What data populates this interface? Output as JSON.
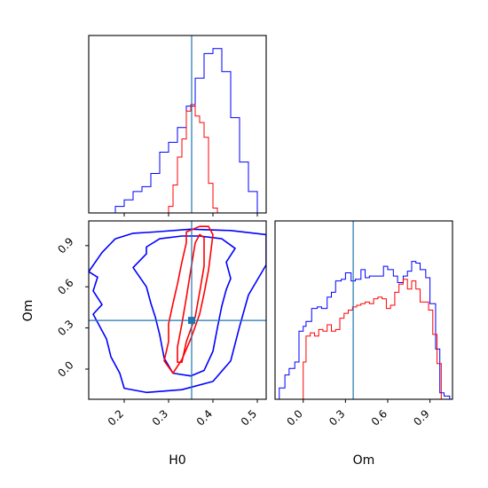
{
  "colors": {
    "blue": "#0000ff",
    "red": "#ff0000",
    "truth": "#1f77b4",
    "truth_marker": "#1f77b4",
    "frame": "#000000"
  },
  "chart_data": {
    "type": "corner",
    "parameters": [
      "H0",
      "Om"
    ],
    "truth": {
      "H0": 0.352,
      "Om": 0.355
    },
    "panels": [
      {
        "id": "h0-marginal",
        "type": "histogram-step",
        "x_parameter": "H0",
        "xlim": [
          0.12,
          0.52
        ],
        "ylim": [
          0,
          1.08
        ],
        "x_ticks": [
          0.2,
          0.3,
          0.4,
          0.5
        ],
        "x_tick_labels_shown": false,
        "y_ticks_shown": false,
        "series": [
          {
            "color": "#0000ff",
            "bin_edges": [
              0.18,
              0.2,
              0.22,
              0.24,
              0.26,
              0.28,
              0.3,
              0.32,
              0.34,
              0.36,
              0.38,
              0.4,
              0.42,
              0.44,
              0.46,
              0.48,
              0.5
            ],
            "values": [
              0.04,
              0.08,
              0.13,
              0.16,
              0.24,
              0.37,
              0.43,
              0.52,
              0.65,
              0.82,
              0.97,
              1.0,
              0.86,
              0.58,
              0.31,
              0.13
            ]
          },
          {
            "color": "#ff0000",
            "bin_edges": [
              0.3,
              0.31,
              0.32,
              0.33,
              0.34,
              0.35,
              0.36,
              0.37,
              0.38,
              0.39,
              0.4,
              0.41
            ],
            "values": [
              0.04,
              0.17,
              0.34,
              0.45,
              0.62,
              0.66,
              0.59,
              0.55,
              0.46,
              0.18,
              0.03
            ]
          }
        ]
      },
      {
        "id": "h0-om-contours",
        "type": "contour",
        "x_parameter": "H0",
        "y_parameter": "Om",
        "xlim": [
          0.12,
          0.52
        ],
        "ylim": [
          -0.22,
          1.08
        ],
        "x_ticks": [
          0.2,
          0.3,
          0.4,
          0.5
        ],
        "x_tick_labels": [
          "0.2",
          "0.3",
          "0.4",
          "0.5"
        ],
        "y_ticks": [
          0.0,
          0.3,
          0.6,
          0.9
        ],
        "y_tick_labels": [
          "0.0",
          "0.3",
          "0.6",
          "0.9"
        ],
        "xlabel": "H0",
        "ylabel": "Om",
        "contours": [
          {
            "color": "#0000ff",
            "level": "outer",
            "points": [
              [
                0.27,
                1.0
              ],
              [
                0.35,
                1.02
              ],
              [
                0.44,
                1.01
              ],
              [
                0.52,
                0.98
              ],
              [
                0.52,
                0.76
              ],
              [
                0.48,
                0.54
              ],
              [
                0.46,
                0.31
              ],
              [
                0.44,
                0.06
              ],
              [
                0.4,
                -0.09
              ],
              [
                0.33,
                -0.15
              ],
              [
                0.25,
                -0.17
              ],
              [
                0.2,
                -0.14
              ],
              [
                0.19,
                -0.03
              ],
              [
                0.17,
                0.09
              ],
              [
                0.16,
                0.22
              ],
              [
                0.13,
                0.4
              ],
              [
                0.15,
                0.47
              ],
              [
                0.13,
                0.57
              ],
              [
                0.14,
                0.67
              ],
              [
                0.12,
                0.71
              ],
              [
                0.15,
                0.85
              ],
              [
                0.18,
                0.95
              ],
              [
                0.22,
                0.99
              ],
              [
                0.27,
                1.0
              ]
            ]
          },
          {
            "color": "#0000ff",
            "level": "inner",
            "points": [
              [
                0.37,
                0.97
              ],
              [
                0.42,
                0.95
              ],
              [
                0.45,
                0.88
              ],
              [
                0.43,
                0.78
              ],
              [
                0.44,
                0.66
              ],
              [
                0.43,
                0.58
              ],
              [
                0.42,
                0.46
              ],
              [
                0.41,
                0.3
              ],
              [
                0.4,
                0.13
              ],
              [
                0.38,
                -0.01
              ],
              [
                0.35,
                -0.05
              ],
              [
                0.31,
                -0.03
              ],
              [
                0.29,
                0.08
              ],
              [
                0.28,
                0.25
              ],
              [
                0.27,
                0.38
              ],
              [
                0.26,
                0.48
              ],
              [
                0.25,
                0.6
              ],
              [
                0.22,
                0.74
              ],
              [
                0.25,
                0.84
              ],
              [
                0.25,
                0.89
              ],
              [
                0.28,
                0.95
              ],
              [
                0.33,
                0.97
              ],
              [
                0.37,
                0.97
              ]
            ]
          },
          {
            "color": "#ff0000",
            "level": "outer",
            "points": [
              [
                0.34,
                1.0
              ],
              [
                0.37,
                1.04
              ],
              [
                0.39,
                1.04
              ],
              [
                0.4,
                0.98
              ],
              [
                0.39,
                0.72
              ],
              [
                0.38,
                0.55
              ],
              [
                0.37,
                0.4
              ],
              [
                0.35,
                0.22
              ],
              [
                0.33,
                0.07
              ],
              [
                0.31,
                -0.03
              ],
              [
                0.29,
                0.06
              ],
              [
                0.3,
                0.2
              ],
              [
                0.3,
                0.33
              ],
              [
                0.31,
                0.48
              ],
              [
                0.32,
                0.62
              ],
              [
                0.33,
                0.78
              ],
              [
                0.34,
                0.92
              ],
              [
                0.34,
                1.0
              ]
            ]
          },
          {
            "color": "#ff0000",
            "level": "inner",
            "points": [
              [
                0.36,
                0.92
              ],
              [
                0.37,
                0.98
              ],
              [
                0.38,
                0.96
              ],
              [
                0.38,
                0.75
              ],
              [
                0.37,
                0.56
              ],
              [
                0.36,
                0.38
              ],
              [
                0.34,
                0.2
              ],
              [
                0.33,
                0.05
              ],
              [
                0.32,
                0.05
              ],
              [
                0.32,
                0.16
              ],
              [
                0.33,
                0.33
              ],
              [
                0.34,
                0.52
              ],
              [
                0.35,
                0.72
              ],
              [
                0.36,
                0.92
              ]
            ]
          }
        ]
      },
      {
        "id": "om-marginal",
        "type": "histogram-step",
        "x_parameter": "Om",
        "xlim": [
          -0.2,
          1.06
        ],
        "ylim": [
          0,
          1.1
        ],
        "x_ticks": [
          0.0,
          0.3,
          0.6,
          0.9
        ],
        "x_tick_labels": [
          "0.0",
          "0.3",
          "0.6",
          "0.9"
        ],
        "y_ticks_shown": false,
        "xlabel": "Om",
        "series": [
          {
            "color": "#0000ff",
            "bin_edges": [
              -0.17,
              -0.13,
              -0.1,
              -0.06,
              -0.03,
              0.0,
              0.02,
              0.06,
              0.1,
              0.13,
              0.17,
              0.2,
              0.23,
              0.27,
              0.3,
              0.34,
              0.37,
              0.41,
              0.44,
              0.47,
              0.5,
              0.53,
              0.57,
              0.6,
              0.64,
              0.67,
              0.71,
              0.74,
              0.77,
              0.8,
              0.83,
              0.87,
              0.9,
              0.94,
              0.97,
              1.0,
              1.04
            ],
            "values": [
              0.07,
              0.15,
              0.19,
              0.23,
              0.42,
              0.45,
              0.48,
              0.56,
              0.57,
              0.56,
              0.63,
              0.66,
              0.73,
              0.74,
              0.78,
              0.73,
              0.74,
              0.8,
              0.75,
              0.76,
              0.76,
              0.76,
              0.82,
              0.8,
              0.76,
              0.72,
              0.76,
              0.79,
              0.85,
              0.84,
              0.8,
              0.75,
              0.59,
              0.31,
              0.04,
              0.02
            ]
          },
          {
            "color": "#ff0000",
            "bin_edges": [
              0.0,
              0.02,
              0.05,
              0.08,
              0.11,
              0.14,
              0.17,
              0.2,
              0.23,
              0.26,
              0.29,
              0.32,
              0.35,
              0.38,
              0.41,
              0.44,
              0.47,
              0.5,
              0.53,
              0.56,
              0.59,
              0.62,
              0.65,
              0.68,
              0.71,
              0.74,
              0.77,
              0.8,
              0.83,
              0.86,
              0.89,
              0.92,
              0.95,
              0.98,
              1.01
            ],
            "values": [
              0.23,
              0.39,
              0.41,
              0.39,
              0.43,
              0.42,
              0.46,
              0.42,
              0.43,
              0.5,
              0.53,
              0.55,
              0.57,
              0.58,
              0.59,
              0.6,
              0.59,
              0.62,
              0.63,
              0.62,
              0.56,
              0.58,
              0.66,
              0.71,
              0.74,
              0.68,
              0.73,
              0.68,
              0.6,
              0.6,
              0.55,
              0.4,
              0.22,
              0.0
            ]
          }
        ]
      }
    ]
  }
}
